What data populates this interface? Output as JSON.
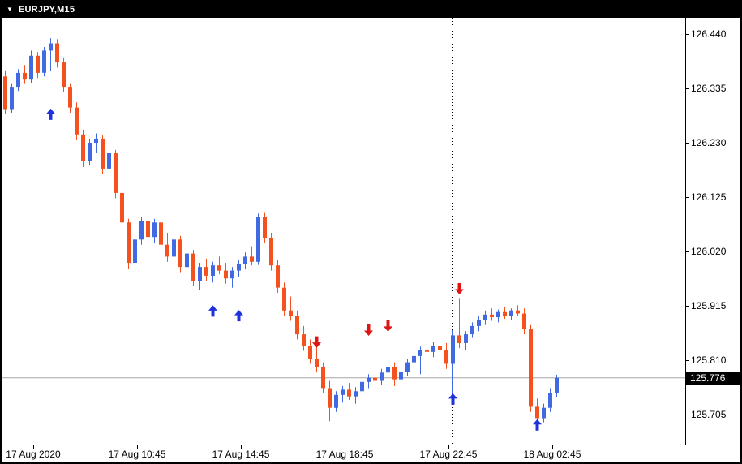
{
  "window": {
    "title": "EURJPY,M15",
    "title_icon": "▼"
  },
  "colors": {
    "background": "#ffffff",
    "titlebar_bg": "#000000",
    "titlebar_text": "#ffffff",
    "bull": "#4169e1",
    "bear": "#f4511e",
    "arrow_up": "#2030dd",
    "arrow_down": "#dd1515",
    "bid_line": "#a6a6a6",
    "axis_line": "#000000",
    "price_badge_bg": "#000000",
    "price_badge_text": "#ffffff"
  },
  "chart_data": {
    "type": "candlestick",
    "symbol": "EURJPY",
    "timeframe": "M15",
    "current_price": "125.776",
    "price_axis": {
      "top_price": 126.44,
      "bottom_price": 125.705,
      "labels": [
        "126.440",
        "126.335",
        "126.230",
        "126.125",
        "126.020",
        "125.915",
        "125.810",
        "125.705"
      ]
    },
    "time_axis": {
      "labels": [
        "17 Aug 2020",
        "17 Aug 10:45",
        "17 Aug 14:45",
        "17 Aug 18:45",
        "17 Aug 22:45",
        "18 Aug 02:45"
      ]
    },
    "separator_index": 69,
    "candles": [
      [
        126.358,
        126.37,
        126.285,
        126.295
      ],
      [
        126.295,
        126.345,
        126.288,
        126.338
      ],
      [
        126.338,
        126.372,
        126.33,
        126.365
      ],
      [
        126.365,
        126.38,
        126.345,
        126.352
      ],
      [
        126.352,
        126.408,
        126.346,
        126.398
      ],
      [
        126.398,
        126.405,
        126.355,
        126.365
      ],
      [
        126.365,
        126.415,
        126.358,
        126.408
      ],
      [
        126.408,
        126.432,
        126.368,
        126.422
      ],
      [
        126.422,
        126.43,
        126.375,
        126.385
      ],
      [
        126.385,
        126.395,
        126.328,
        126.338
      ],
      [
        126.338,
        126.345,
        126.288,
        126.298
      ],
      [
        126.298,
        126.308,
        126.236,
        126.246
      ],
      [
        126.246,
        126.255,
        126.183,
        126.194
      ],
      [
        126.194,
        126.238,
        126.186,
        126.23
      ],
      [
        126.23,
        126.248,
        126.21,
        126.238
      ],
      [
        126.238,
        126.244,
        126.17,
        126.18
      ],
      [
        126.18,
        126.218,
        126.163,
        126.21
      ],
      [
        126.21,
        126.216,
        126.123,
        126.133
      ],
      [
        126.133,
        126.143,
        126.066,
        126.076
      ],
      [
        126.076,
        126.083,
        125.986,
        125.998
      ],
      [
        125.998,
        126.05,
        125.98,
        126.043
      ],
      [
        126.043,
        126.086,
        126.033,
        126.078
      ],
      [
        126.078,
        126.09,
        126.038,
        126.048
      ],
      [
        126.048,
        126.083,
        126.036,
        126.076
      ],
      [
        126.076,
        126.083,
        126.023,
        126.033
      ],
      [
        126.033,
        126.056,
        126.0,
        126.01
      ],
      [
        126.01,
        126.05,
        126.003,
        126.043
      ],
      [
        126.043,
        126.05,
        125.98,
        125.99
      ],
      [
        125.99,
        126.023,
        125.973,
        126.016
      ],
      [
        126.016,
        126.023,
        125.953,
        125.963
      ],
      [
        125.963,
        125.998,
        125.946,
        125.99
      ],
      [
        125.99,
        126.006,
        125.963,
        125.973
      ],
      [
        125.973,
        126.0,
        125.96,
        125.993
      ],
      [
        125.993,
        126.01,
        125.976,
        125.983
      ],
      [
        125.983,
        125.998,
        125.958,
        125.968
      ],
      [
        125.968,
        125.99,
        125.95,
        125.983
      ],
      [
        125.983,
        126.003,
        125.97,
        125.996
      ],
      [
        125.996,
        126.018,
        125.986,
        126.01
      ],
      [
        126.01,
        126.03,
        125.993,
        126.0
      ],
      [
        126.0,
        126.093,
        125.994,
        126.086
      ],
      [
        126.086,
        126.096,
        126.036,
        126.046
      ],
      [
        126.046,
        126.056,
        125.983,
        125.993
      ],
      [
        125.993,
        126.003,
        125.94,
        125.95
      ],
      [
        125.95,
        125.96,
        125.896,
        125.906
      ],
      [
        125.906,
        125.933,
        125.886,
        125.896
      ],
      [
        125.896,
        125.906,
        125.85,
        125.86
      ],
      [
        125.86,
        125.876,
        125.828,
        125.838
      ],
      [
        125.838,
        125.85,
        125.803,
        125.813
      ],
      [
        125.813,
        125.836,
        125.786,
        125.796
      ],
      [
        125.796,
        125.806,
        125.746,
        125.756
      ],
      [
        125.756,
        125.77,
        125.692,
        125.718
      ],
      [
        125.718,
        125.75,
        125.71,
        125.743
      ],
      [
        125.743,
        125.76,
        125.728,
        125.753
      ],
      [
        125.753,
        125.766,
        125.733,
        125.74
      ],
      [
        125.74,
        125.758,
        125.726,
        125.75
      ],
      [
        125.75,
        125.776,
        125.74,
        125.768
      ],
      [
        125.768,
        125.783,
        125.756,
        125.776
      ],
      [
        125.776,
        125.788,
        125.76,
        125.77
      ],
      [
        125.77,
        125.793,
        125.763,
        125.786
      ],
      [
        125.786,
        125.803,
        125.773,
        125.796
      ],
      [
        125.796,
        125.806,
        125.76,
        125.773
      ],
      [
        125.773,
        125.793,
        125.756,
        125.788
      ],
      [
        125.788,
        125.813,
        125.78,
        125.806
      ],
      [
        125.806,
        125.826,
        125.796,
        125.818
      ],
      [
        125.818,
        125.836,
        125.783,
        125.83
      ],
      [
        125.83,
        125.843,
        125.818,
        125.826
      ],
      [
        125.826,
        125.846,
        125.816,
        125.838
      ],
      [
        125.838,
        125.853,
        125.823,
        125.83
      ],
      [
        125.83,
        125.843,
        125.793,
        125.803
      ],
      [
        125.803,
        125.868,
        125.743,
        125.858
      ],
      [
        125.858,
        125.93,
        125.833,
        125.843
      ],
      [
        125.843,
        125.866,
        125.83,
        125.86
      ],
      [
        125.86,
        125.883,
        125.853,
        125.876
      ],
      [
        125.876,
        125.896,
        125.866,
        125.888
      ],
      [
        125.888,
        125.906,
        125.878,
        125.898
      ],
      [
        125.898,
        125.91,
        125.886,
        125.893
      ],
      [
        125.893,
        125.908,
        125.883,
        125.903
      ],
      [
        125.903,
        125.913,
        125.89,
        125.896
      ],
      [
        125.896,
        125.91,
        125.888,
        125.906
      ],
      [
        125.906,
        125.916,
        125.896,
        125.9
      ],
      [
        125.9,
        125.91,
        125.86,
        125.87
      ],
      [
        125.87,
        125.878,
        125.71,
        125.72
      ],
      [
        125.72,
        125.736,
        125.69,
        125.698
      ],
      [
        125.698,
        125.726,
        125.69,
        125.718
      ],
      [
        125.718,
        125.756,
        125.71,
        125.746
      ],
      [
        125.746,
        125.782,
        125.738,
        125.776
      ]
    ],
    "arrows": [
      {
        "index": 7,
        "price": 126.285,
        "dir": "up"
      },
      {
        "index": 32,
        "price": 125.905,
        "dir": "up"
      },
      {
        "index": 36,
        "price": 125.896,
        "dir": "up"
      },
      {
        "index": 48,
        "price": 125.845,
        "dir": "down"
      },
      {
        "index": 56,
        "price": 125.868,
        "dir": "down"
      },
      {
        "index": 59,
        "price": 125.876,
        "dir": "down"
      },
      {
        "index": 69,
        "price": 125.735,
        "dir": "up"
      },
      {
        "index": 70,
        "price": 125.948,
        "dir": "down"
      },
      {
        "index": 82,
        "price": 125.685,
        "dir": "up"
      }
    ]
  }
}
